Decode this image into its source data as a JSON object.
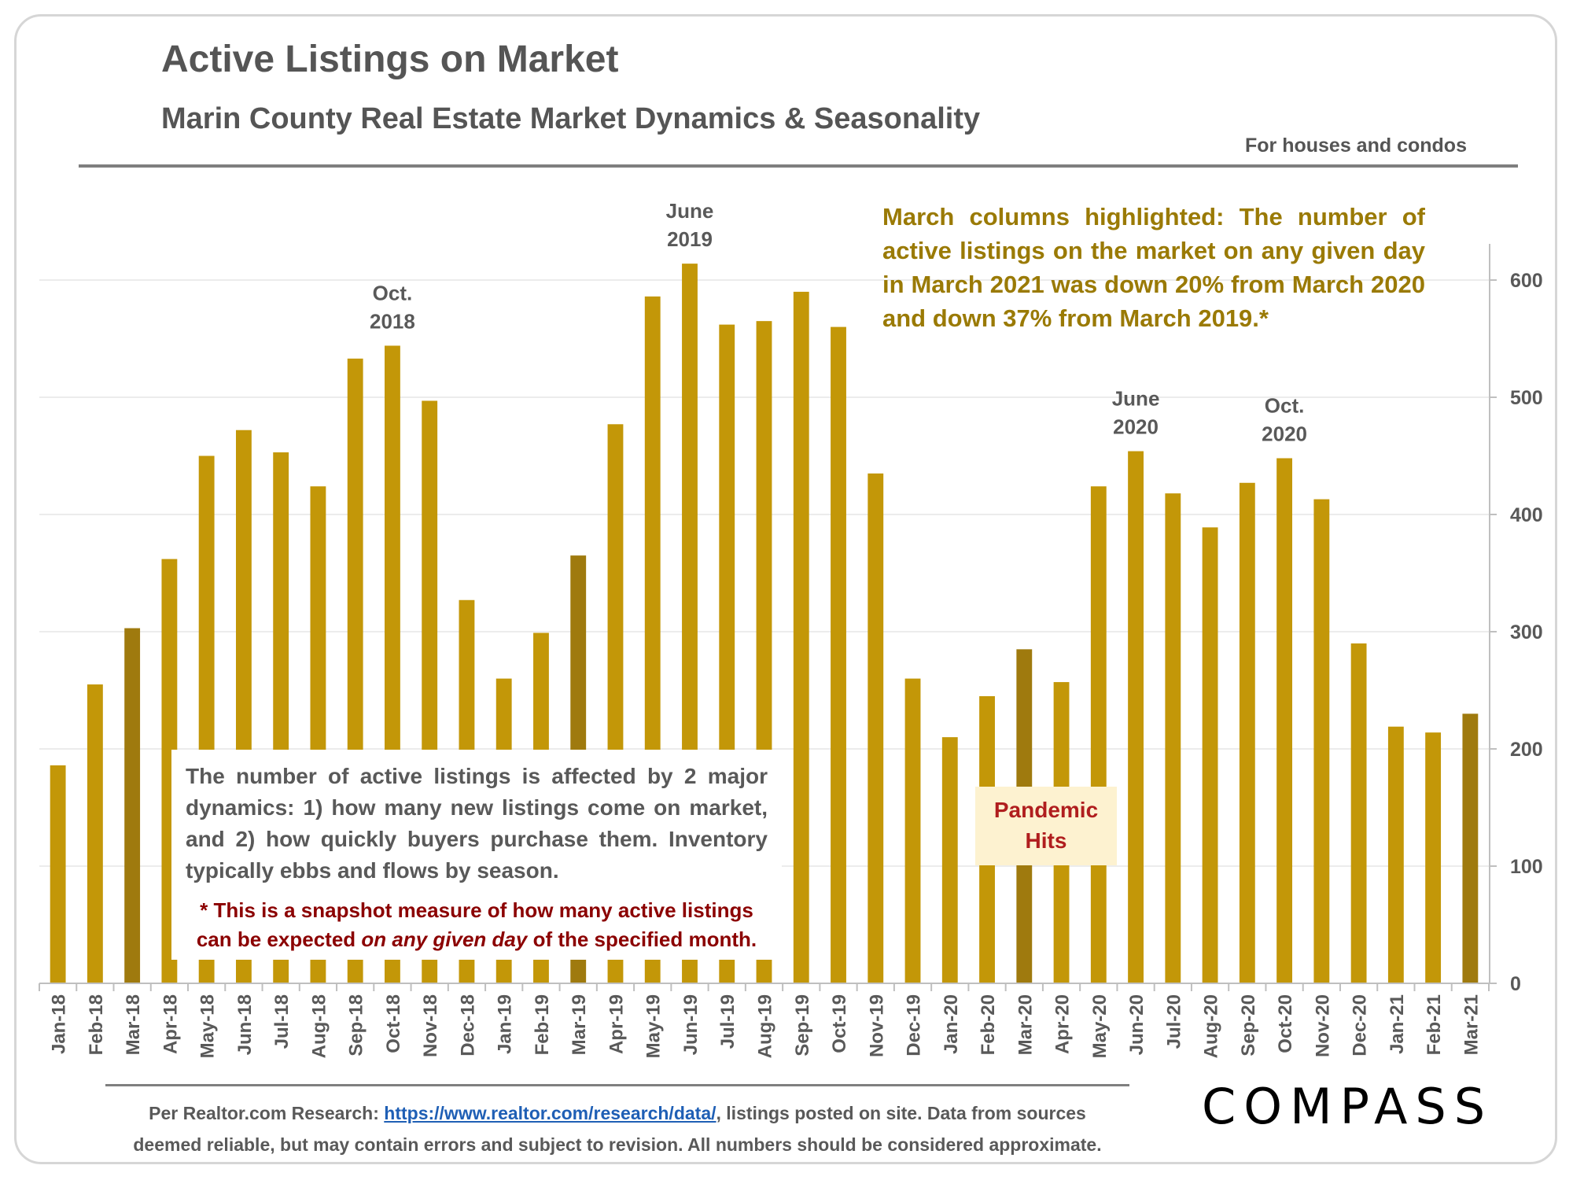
{
  "header": {
    "title": "Active Listings on Market",
    "subtitle": "Marin County Real Estate Market Dynamics & Seasonality",
    "scope": "For houses and condos"
  },
  "notes": {
    "highlight": "March columns highlighted: The number of active listings on the market on any given day in March 2021 was down 20% from March 2020 and down 37% from March 2019.*",
    "explanation": "The number of active listings is affected by 2 major dynamics: 1) how many new listings come on market, and 2) how quickly buyers purchase them. Inventory typically ebbs and flows by season.",
    "footnote_pre": "* This is a snapshot measure of how many active listings can be expected ",
    "footnote_em": "on any given day",
    "footnote_post": " of the specified month.",
    "pandemic_line1": "Pandemic",
    "pandemic_line2": "Hits"
  },
  "footer": {
    "source_prefix": "Per Realtor.com Research: ",
    "source_link": "https://www.realtor.com/research/data/",
    "source_suffix": ", listings posted on site. Data from sources",
    "source_line2": "deemed reliable, but may contain errors and subject to revision. All numbers should be considered approximate.",
    "logo": "COMPASS"
  },
  "colors": {
    "bar": "#c39708",
    "bar_march": "#9f7a0e",
    "axis_text": "#595959",
    "grid": "#e6e6e6"
  },
  "chart_data": {
    "type": "bar",
    "categories": [
      "Jan-18",
      "Feb-18",
      "Mar-18",
      "Apr-18",
      "May-18",
      "Jun-18",
      "Jul-18",
      "Aug-18",
      "Sep-18",
      "Oct-18",
      "Nov-18",
      "Dec-18",
      "Jan-19",
      "Feb-19",
      "Mar-19",
      "Apr-19",
      "May-19",
      "Jun-19",
      "Jul-19",
      "Aug-19",
      "Sep-19",
      "Oct-19",
      "Nov-19",
      "Dec-19",
      "Jan-20",
      "Feb-20",
      "Mar-20",
      "Apr-20",
      "May-20",
      "Jun-20",
      "Jul-20",
      "Aug-20",
      "Sep-20",
      "Oct-20",
      "Nov-20",
      "Dec-20",
      "Jan-21",
      "Feb-21",
      "Mar-21"
    ],
    "values": [
      186,
      255,
      303,
      362,
      450,
      472,
      453,
      424,
      533,
      544,
      497,
      327,
      260,
      299,
      365,
      477,
      586,
      614,
      562,
      565,
      590,
      560,
      435,
      260,
      210,
      245,
      285,
      257,
      424,
      454,
      418,
      389,
      427,
      448,
      413,
      290,
      219,
      214,
      230
    ],
    "highlighted": [
      "Mar-18",
      "Mar-19",
      "Mar-20",
      "Mar-21"
    ],
    "ylim": [
      0,
      600
    ],
    "yticks": [
      0,
      100,
      200,
      300,
      400,
      500,
      600
    ],
    "y_axis_side": "right",
    "grid": true,
    "legend": "none",
    "annotations": [
      {
        "category": "Oct-18",
        "line1": "Oct.",
        "line2": "2018"
      },
      {
        "category": "Jun-19",
        "line1": "June",
        "line2": "2019"
      },
      {
        "category": "Jun-20",
        "line1": "June",
        "line2": "2020"
      },
      {
        "category": "Oct-20",
        "line1": "Oct.",
        "line2": "2020"
      }
    ]
  }
}
